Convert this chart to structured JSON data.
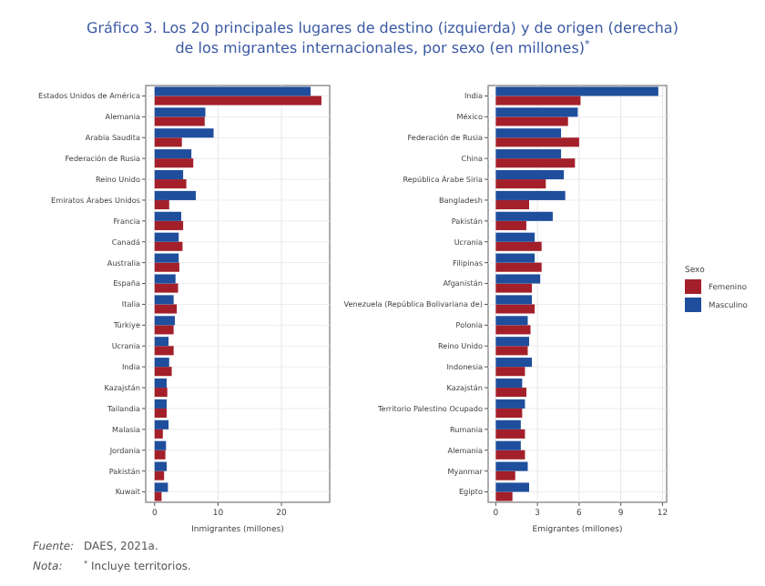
{
  "chart_data": [
    {
      "type": "bar",
      "orientation": "horizontal",
      "title": "Gráfico 3. Los 20 principales lugares de destino (izquierda) y de origen (derecha) de los migrantes internacionales, por sexo (en millones)$^{*}$",
      "xlabel": "Inmigrantes (millones)",
      "annotations": [
        "Fuente: DAES, 2021a.",
        "Nota: $^{*}$ Incluye territorios."
      ],
      "grid": true,
      "xlim": [
        -1.4,
        27.6
      ],
      "xticks": [
        0,
        10,
        20
      ],
      "categories": [
        "Estados Unidos de América",
        "Alemania",
        "Arabia Saudita",
        "Federación de Rusia",
        "Reino Unido",
        "Emiratos Árabes Unidos",
        "Francia",
        "Canadá",
        "Australia",
        "España",
        "Italia",
        "Türkiye",
        "Ucrania",
        "India",
        "Kazajstán",
        "Tailandia",
        "Malasia",
        "Jordania",
        "Pakistán",
        "Kuwait"
      ],
      "series": [
        {
          "color": "#a3202a",
          "values": [
            26.3,
            7.9,
            4.3,
            6.1,
            5.0,
            2.3,
            4.5,
            4.4,
            3.9,
            3.7,
            3.5,
            3.0,
            3.0,
            2.7,
            2.0,
            1.9,
            1.3,
            1.7,
            1.5,
            1.1
          ]
        },
        {
          "color": "#1f4e9c",
          "values": [
            24.6,
            8.0,
            9.3,
            5.8,
            4.5,
            6.5,
            4.2,
            3.8,
            3.8,
            3.3,
            3.0,
            3.2,
            2.2,
            2.3,
            1.9,
            1.9,
            2.2,
            1.8,
            1.9,
            2.1
          ]
        }
      ]
    },
    {
      "type": "bar",
      "orientation": "horizontal",
      "xlabel": "Emigrantes (millones)",
      "grid": true,
      "xlim": [
        -0.55,
        12.3
      ],
      "xticks": [
        0,
        3,
        6,
        9,
        12
      ],
      "legend": "right",
      "legend_title": "Sexo",
      "categories": [
        "India",
        "México",
        "Federación de Rusia",
        "China",
        "República Árabe Siria",
        "Bangladesh",
        "Pakistán",
        "Ucrania",
        "Filipinas",
        "Afganistán",
        "Venezuela (República Bolivariana de)",
        "Polonia",
        "Reino Unido",
        "Indonesia",
        "Kazajstán",
        "Territorio Palestino Ocupado",
        "Rumania",
        "Alemania",
        "Myanmar",
        "Egipto"
      ],
      "series": [
        {
          "name": "Femenino",
          "color": "#a3202a",
          "values": [
            6.1,
            5.2,
            6.0,
            5.7,
            3.6,
            2.4,
            2.2,
            3.3,
            3.3,
            2.6,
            2.8,
            2.5,
            2.3,
            2.1,
            2.2,
            1.9,
            2.1,
            2.1,
            1.4,
            1.2
          ]
        },
        {
          "name": "Masculino",
          "color": "#1f4e9c",
          "values": [
            11.7,
            5.9,
            4.7,
            4.7,
            4.9,
            5.0,
            4.1,
            2.8,
            2.8,
            3.2,
            2.6,
            2.3,
            2.4,
            2.6,
            1.9,
            2.1,
            1.8,
            1.8,
            2.3,
            2.4
          ]
        }
      ]
    }
  ]
}
